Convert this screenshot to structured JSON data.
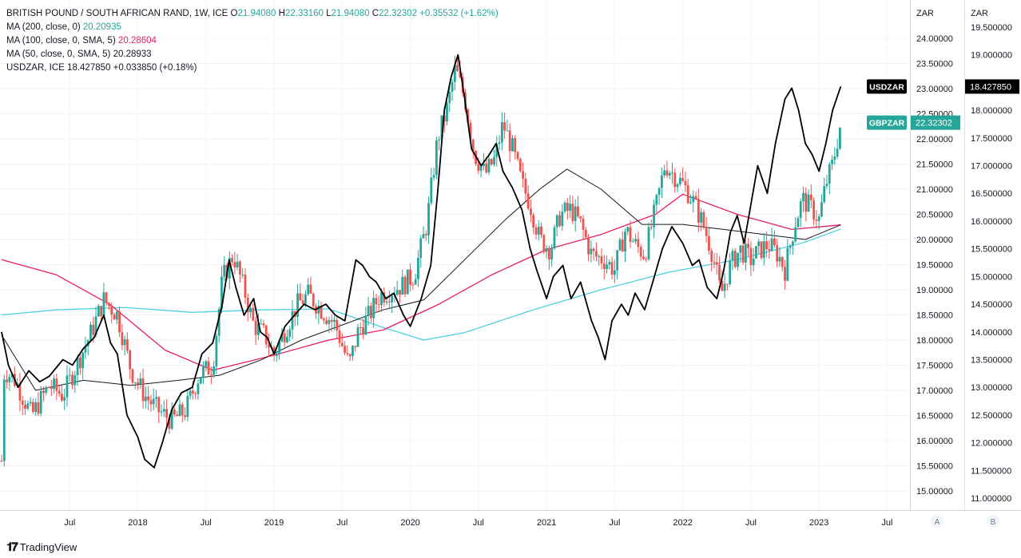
{
  "legend": {
    "main": {
      "title": "BRITISH POUND / SOUTH AFRICAN RAND, 1W, ICE",
      "o_label": "O",
      "o_value": "21.94080",
      "h_label": "H",
      "h_value": "22.33160",
      "l_label": "L",
      "l_value": "21.94080",
      "c_label": "C",
      "c_value": "22.32302",
      "change": "+0.35532 (+1.62%)"
    },
    "ma200": {
      "label": "MA (200, close, 0)",
      "value": "20.20935"
    },
    "ma100": {
      "label": "MA (100, close, 0, SMA, 5)",
      "value": "20.28604"
    },
    "ma50": {
      "label": "MA (50, close, 0, SMA, 5)",
      "value": "20.28933"
    },
    "usdzar": {
      "label": "USDZAR, ICE",
      "value": "18.427850",
      "change": "+0.033850 (+0.18%)"
    }
  },
  "footer": {
    "brand": "TradingView"
  },
  "colors": {
    "up": "#26a69a",
    "down": "#ef5350",
    "ma200": "#4dd0e1",
    "ma100": "#e91e63",
    "ma50": "#131722",
    "usdzar": "#000000",
    "grid": "#f0f3fa"
  },
  "chart_data": {
    "type": "candlestick",
    "title": "BRITISH POUND / SOUTH AFRICAN RAND, 1W, ICE",
    "axes": {
      "left": {
        "label": "ZAR",
        "range": [
          14.6,
          24.6
        ],
        "ticks": [
          "24.00000",
          "23.50000",
          "23.00000",
          "22.50000",
          "22.00000",
          "21.50000",
          "21.00000",
          "20.50000",
          "20.00000",
          "19.50000",
          "19.00000",
          "18.50000",
          "18.00000",
          "17.50000",
          "17.00000",
          "16.50000",
          "16.00000",
          "15.50000",
          "15.00000"
        ],
        "side_button": "A"
      },
      "right": {
        "label": "ZAR",
        "range": [
          10.7,
          19.8
        ],
        "ticks": [
          "19.500000",
          "19.000000",
          "18.500000",
          "18.000000",
          "17.500000",
          "17.000000",
          "16.500000",
          "16.000000",
          "15.500000",
          "15.000000",
          "14.500000",
          "14.000000",
          "13.500000",
          "13.000000",
          "12.500000",
          "12.000000",
          "11.500000",
          "11.000000"
        ],
        "side_button": "B"
      },
      "x_ticks": [
        "Jul",
        "2018",
        "Jul",
        "2019",
        "Jul",
        "2020",
        "Jul",
        "2021",
        "Jul",
        "2022",
        "Jul",
        "2023",
        "Jul"
      ]
    },
    "last_labels": [
      {
        "name": "USDZAR",
        "value": "18.427850",
        "series_value": 18.42785
      },
      {
        "name": "GBPZAR",
        "value": "22.32302",
        "series_value": 22.32302
      }
    ],
    "gbpzar_path": [
      {
        "t": 2017.0,
        "v": 15.6
      },
      {
        "t": 2017.02,
        "v": 17.4
      },
      {
        "t": 2017.1,
        "v": 17.2
      },
      {
        "t": 2017.22,
        "v": 16.5
      },
      {
        "t": 2017.35,
        "v": 17.1
      },
      {
        "t": 2017.45,
        "v": 16.9
      },
      {
        "t": 2017.55,
        "v": 17.5
      },
      {
        "t": 2017.65,
        "v": 18.1
      },
      {
        "t": 2017.75,
        "v": 18.8
      },
      {
        "t": 2017.85,
        "v": 18.5
      },
      {
        "t": 2017.95,
        "v": 17.4
      },
      {
        "t": 2018.05,
        "v": 16.9
      },
      {
        "t": 2018.15,
        "v": 16.6
      },
      {
        "t": 2018.25,
        "v": 16.4
      },
      {
        "t": 2018.35,
        "v": 16.6
      },
      {
        "t": 2018.45,
        "v": 17.3
      },
      {
        "t": 2018.55,
        "v": 17.5
      },
      {
        "t": 2018.62,
        "v": 19.2
      },
      {
        "t": 2018.7,
        "v": 19.7
      },
      {
        "t": 2018.78,
        "v": 19.0
      },
      {
        "t": 2018.85,
        "v": 18.3
      },
      {
        "t": 2018.93,
        "v": 18.1
      },
      {
        "t": 2019.0,
        "v": 17.7
      },
      {
        "t": 2019.08,
        "v": 18.2
      },
      {
        "t": 2019.17,
        "v": 18.7
      },
      {
        "t": 2019.25,
        "v": 18.9
      },
      {
        "t": 2019.35,
        "v": 18.6
      },
      {
        "t": 2019.45,
        "v": 18.3
      },
      {
        "t": 2019.55,
        "v": 17.5
      },
      {
        "t": 2019.62,
        "v": 18.2
      },
      {
        "t": 2019.7,
        "v": 18.5
      },
      {
        "t": 2019.78,
        "v": 18.9
      },
      {
        "t": 2019.87,
        "v": 19.0
      },
      {
        "t": 2019.95,
        "v": 19.1
      },
      {
        "t": 2020.03,
        "v": 19.3
      },
      {
        "t": 2020.12,
        "v": 20.3
      },
      {
        "t": 2020.2,
        "v": 22.0
      },
      {
        "t": 2020.27,
        "v": 22.6
      },
      {
        "t": 2020.33,
        "v": 23.4
      },
      {
        "t": 2020.4,
        "v": 22.8
      },
      {
        "t": 2020.47,
        "v": 21.7
      },
      {
        "t": 2020.55,
        "v": 21.3
      },
      {
        "t": 2020.62,
        "v": 21.6
      },
      {
        "t": 2020.68,
        "v": 22.3
      },
      {
        "t": 2020.75,
        "v": 21.8
      },
      {
        "t": 2020.82,
        "v": 21.1
      },
      {
        "t": 2020.88,
        "v": 20.7
      },
      {
        "t": 2020.95,
        "v": 20.0
      },
      {
        "t": 2021.03,
        "v": 19.8
      },
      {
        "t": 2021.1,
        "v": 20.5
      },
      {
        "t": 2021.18,
        "v": 20.6
      },
      {
        "t": 2021.25,
        "v": 20.3
      },
      {
        "t": 2021.33,
        "v": 19.7
      },
      {
        "t": 2021.42,
        "v": 19.6
      },
      {
        "t": 2021.5,
        "v": 19.4
      },
      {
        "t": 2021.58,
        "v": 20.2
      },
      {
        "t": 2021.65,
        "v": 19.9
      },
      {
        "t": 2021.72,
        "v": 19.7
      },
      {
        "t": 2021.8,
        "v": 20.6
      },
      {
        "t": 2021.87,
        "v": 21.5
      },
      {
        "t": 2021.93,
        "v": 21.3
      },
      {
        "t": 2022.0,
        "v": 21.1
      },
      {
        "t": 2022.07,
        "v": 20.8
      },
      {
        "t": 2022.15,
        "v": 20.3
      },
      {
        "t": 2022.22,
        "v": 19.7
      },
      {
        "t": 2022.28,
        "v": 18.9
      },
      {
        "t": 2022.35,
        "v": 19.5
      },
      {
        "t": 2022.42,
        "v": 19.8
      },
      {
        "t": 2022.5,
        "v": 19.6
      },
      {
        "t": 2022.57,
        "v": 19.8
      },
      {
        "t": 2022.63,
        "v": 19.9
      },
      {
        "t": 2022.7,
        "v": 19.7
      },
      {
        "t": 2022.75,
        "v": 19.4
      },
      {
        "t": 2022.82,
        "v": 20.3
      },
      {
        "t": 2022.88,
        "v": 20.8
      },
      {
        "t": 2022.95,
        "v": 20.6
      },
      {
        "t": 2023.0,
        "v": 20.4
      },
      {
        "t": 2023.05,
        "v": 21.1
      },
      {
        "t": 2023.1,
        "v": 21.5
      },
      {
        "t": 2023.16,
        "v": 22.32
      }
    ],
    "usdzar_path": [
      {
        "t": 2017.0,
        "v": 14.0
      },
      {
        "t": 2017.05,
        "v": 13.4
      },
      {
        "t": 2017.12,
        "v": 13.0
      },
      {
        "t": 2017.2,
        "v": 13.3
      },
      {
        "t": 2017.28,
        "v": 13.1
      },
      {
        "t": 2017.35,
        "v": 13.2
      },
      {
        "t": 2017.45,
        "v": 13.5
      },
      {
        "t": 2017.52,
        "v": 13.4
      },
      {
        "t": 2017.6,
        "v": 13.7
      },
      {
        "t": 2017.68,
        "v": 13.9
      },
      {
        "t": 2017.75,
        "v": 14.3
      },
      {
        "t": 2017.8,
        "v": 13.8
      },
      {
        "t": 2017.85,
        "v": 13.6
      },
      {
        "t": 2017.92,
        "v": 12.5
      },
      {
        "t": 2018.0,
        "v": 12.1
      },
      {
        "t": 2018.05,
        "v": 11.7
      },
      {
        "t": 2018.12,
        "v": 11.55
      },
      {
        "t": 2018.18,
        "v": 12.0
      },
      {
        "t": 2018.25,
        "v": 12.6
      },
      {
        "t": 2018.32,
        "v": 12.9
      },
      {
        "t": 2018.4,
        "v": 13.0
      },
      {
        "t": 2018.47,
        "v": 13.6
      },
      {
        "t": 2018.55,
        "v": 13.8
      },
      {
        "t": 2018.62,
        "v": 14.5
      },
      {
        "t": 2018.67,
        "v": 15.3
      },
      {
        "t": 2018.72,
        "v": 14.8
      },
      {
        "t": 2018.78,
        "v": 14.3
      },
      {
        "t": 2018.85,
        "v": 14.6
      },
      {
        "t": 2018.9,
        "v": 14.0
      },
      {
        "t": 2018.95,
        "v": 13.9
      },
      {
        "t": 2019.0,
        "v": 13.6
      },
      {
        "t": 2019.08,
        "v": 14.1
      },
      {
        "t": 2019.15,
        "v": 14.3
      },
      {
        "t": 2019.22,
        "v": 14.5
      },
      {
        "t": 2019.3,
        "v": 14.4
      },
      {
        "t": 2019.38,
        "v": 14.5
      },
      {
        "t": 2019.45,
        "v": 14.3
      },
      {
        "t": 2019.52,
        "v": 14.2
      },
      {
        "t": 2019.6,
        "v": 15.3
      },
      {
        "t": 2019.65,
        "v": 15.2
      },
      {
        "t": 2019.7,
        "v": 15.0
      },
      {
        "t": 2019.75,
        "v": 14.9
      },
      {
        "t": 2019.82,
        "v": 14.6
      },
      {
        "t": 2019.88,
        "v": 14.7
      },
      {
        "t": 2019.95,
        "v": 14.3
      },
      {
        "t": 2020.0,
        "v": 14.1
      },
      {
        "t": 2020.08,
        "v": 14.6
      },
      {
        "t": 2020.15,
        "v": 15.2
      },
      {
        "t": 2020.2,
        "v": 16.5
      },
      {
        "t": 2020.25,
        "v": 18.0
      },
      {
        "t": 2020.3,
        "v": 18.6
      },
      {
        "t": 2020.35,
        "v": 19.0
      },
      {
        "t": 2020.4,
        "v": 18.2
      },
      {
        "t": 2020.45,
        "v": 17.3
      },
      {
        "t": 2020.52,
        "v": 17.0
      },
      {
        "t": 2020.58,
        "v": 17.2
      },
      {
        "t": 2020.63,
        "v": 17.4
      },
      {
        "t": 2020.68,
        "v": 16.9
      },
      {
        "t": 2020.75,
        "v": 16.6
      },
      {
        "t": 2020.82,
        "v": 16.2
      },
      {
        "t": 2020.88,
        "v": 15.5
      },
      {
        "t": 2020.93,
        "v": 15.1
      },
      {
        "t": 2021.0,
        "v": 14.6
      },
      {
        "t": 2021.05,
        "v": 15.0
      },
      {
        "t": 2021.12,
        "v": 15.2
      },
      {
        "t": 2021.18,
        "v": 14.6
      },
      {
        "t": 2021.25,
        "v": 14.9
      },
      {
        "t": 2021.33,
        "v": 14.2
      },
      {
        "t": 2021.38,
        "v": 13.9
      },
      {
        "t": 2021.43,
        "v": 13.5
      },
      {
        "t": 2021.48,
        "v": 14.2
      },
      {
        "t": 2021.55,
        "v": 14.5
      },
      {
        "t": 2021.6,
        "v": 14.3
      },
      {
        "t": 2021.65,
        "v": 14.7
      },
      {
        "t": 2021.72,
        "v": 14.4
      },
      {
        "t": 2021.78,
        "v": 14.9
      },
      {
        "t": 2021.85,
        "v": 15.5
      },
      {
        "t": 2021.92,
        "v": 15.9
      },
      {
        "t": 2022.0,
        "v": 15.6
      },
      {
        "t": 2022.07,
        "v": 15.2
      },
      {
        "t": 2022.12,
        "v": 15.3
      },
      {
        "t": 2022.18,
        "v": 14.8
      },
      {
        "t": 2022.25,
        "v": 14.6
      },
      {
        "t": 2022.3,
        "v": 15.1
      },
      {
        "t": 2022.35,
        "v": 15.8
      },
      {
        "t": 2022.4,
        "v": 16.1
      },
      {
        "t": 2022.45,
        "v": 15.6
      },
      {
        "t": 2022.5,
        "v": 16.3
      },
      {
        "t": 2022.55,
        "v": 17.0
      },
      {
        "t": 2022.62,
        "v": 16.5
      },
      {
        "t": 2022.68,
        "v": 17.4
      },
      {
        "t": 2022.75,
        "v": 18.2
      },
      {
        "t": 2022.8,
        "v": 18.4
      },
      {
        "t": 2022.85,
        "v": 18.0
      },
      {
        "t": 2022.9,
        "v": 17.4
      },
      {
        "t": 2022.95,
        "v": 17.2
      },
      {
        "t": 2023.0,
        "v": 16.9
      },
      {
        "t": 2023.05,
        "v": 17.4
      },
      {
        "t": 2023.1,
        "v": 18.0
      },
      {
        "t": 2023.16,
        "v": 18.43
      }
    ],
    "ma200_path": [
      {
        "t": 2017.0,
        "v": 18.5
      },
      {
        "t": 2017.4,
        "v": 18.6
      },
      {
        "t": 2017.9,
        "v": 18.65
      },
      {
        "t": 2018.4,
        "v": 18.55
      },
      {
        "t": 2018.9,
        "v": 18.6
      },
      {
        "t": 2019.4,
        "v": 18.62
      },
      {
        "t": 2019.8,
        "v": 18.25
      },
      {
        "t": 2020.1,
        "v": 18.0
      },
      {
        "t": 2020.4,
        "v": 18.15
      },
      {
        "t": 2020.9,
        "v": 18.6
      },
      {
        "t": 2021.4,
        "v": 19.0
      },
      {
        "t": 2021.9,
        "v": 19.35
      },
      {
        "t": 2022.4,
        "v": 19.6
      },
      {
        "t": 2022.9,
        "v": 19.95
      },
      {
        "t": 2023.16,
        "v": 20.21
      }
    ],
    "ma100_path": [
      {
        "t": 2017.0,
        "v": 19.6
      },
      {
        "t": 2017.4,
        "v": 19.3
      },
      {
        "t": 2017.8,
        "v": 18.7
      },
      {
        "t": 2018.2,
        "v": 17.8
      },
      {
        "t": 2018.55,
        "v": 17.4
      },
      {
        "t": 2019.0,
        "v": 17.7
      },
      {
        "t": 2019.4,
        "v": 18.0
      },
      {
        "t": 2019.8,
        "v": 18.2
      },
      {
        "t": 2020.2,
        "v": 18.7
      },
      {
        "t": 2020.6,
        "v": 19.3
      },
      {
        "t": 2021.0,
        "v": 19.8
      },
      {
        "t": 2021.4,
        "v": 20.1
      },
      {
        "t": 2021.8,
        "v": 20.5
      },
      {
        "t": 2022.0,
        "v": 20.9
      },
      {
        "t": 2022.4,
        "v": 20.5
      },
      {
        "t": 2022.8,
        "v": 20.2
      },
      {
        "t": 2023.16,
        "v": 20.29
      }
    ],
    "ma50_path": [
      {
        "t": 2017.0,
        "v": 18.1
      },
      {
        "t": 2017.25,
        "v": 17.0
      },
      {
        "t": 2017.6,
        "v": 17.2
      },
      {
        "t": 2017.95,
        "v": 17.1
      },
      {
        "t": 2018.3,
        "v": 17.2
      },
      {
        "t": 2018.6,
        "v": 17.3
      },
      {
        "t": 2018.9,
        "v": 17.6
      },
      {
        "t": 2019.2,
        "v": 18.0
      },
      {
        "t": 2019.5,
        "v": 18.3
      },
      {
        "t": 2019.8,
        "v": 18.6
      },
      {
        "t": 2020.1,
        "v": 18.8
      },
      {
        "t": 2020.4,
        "v": 19.6
      },
      {
        "t": 2020.7,
        "v": 20.4
      },
      {
        "t": 2020.95,
        "v": 21.0
      },
      {
        "t": 2021.15,
        "v": 21.4
      },
      {
        "t": 2021.4,
        "v": 21.0
      },
      {
        "t": 2021.7,
        "v": 20.3
      },
      {
        "t": 2022.0,
        "v": 20.3
      },
      {
        "t": 2022.3,
        "v": 20.2
      },
      {
        "t": 2022.6,
        "v": 20.1
      },
      {
        "t": 2022.9,
        "v": 20.0
      },
      {
        "t": 2023.16,
        "v": 20.29
      }
    ]
  }
}
